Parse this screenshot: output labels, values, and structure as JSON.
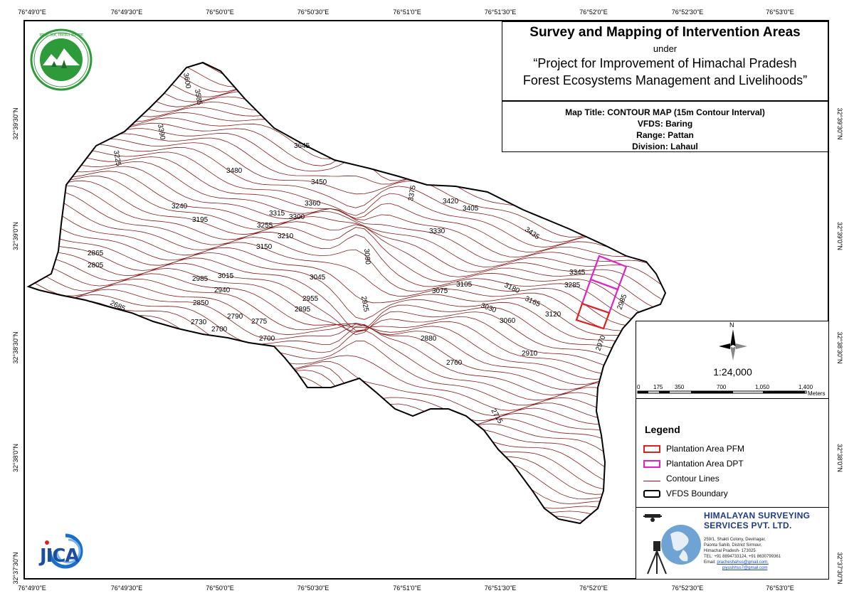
{
  "title": {
    "main": "Survey and Mapping of Intervention Areas",
    "under": "under",
    "project_line1": "“Project for Improvement of Himachal Pradesh",
    "project_line2": "Forest Ecosystems Management and Livelihoods”"
  },
  "info": {
    "map_title": "Map Title: CONTOUR MAP (15m Contour Interval)",
    "vfds": "VFDS: Baring",
    "range": "Range: Pattan",
    "division": "Division: Lahaul"
  },
  "coords": {
    "top": [
      "76°49'0\"E",
      "76°49'30\"E",
      "76°50'0\"E",
      "76°50'30\"E",
      "76°51'0\"E",
      "76°51'30\"E",
      "76°52'0\"E",
      "76°52'30\"E",
      "76°53'0\"E"
    ],
    "bottom": [
      "76°49'0\"E",
      "76°49'30\"E",
      "76°50'0\"E",
      "76°50'30\"E",
      "76°51'0\"E",
      "76°51'30\"E",
      "76°52'0\"E",
      "76°52'30\"E",
      "76°53'0\"E"
    ],
    "left": [
      "32°39'30\"N",
      "32°39'0\"N",
      "32°38'30\"N",
      "32°38'0\"N",
      "32°37'30\"N"
    ],
    "right": [
      "32°39'30\"N",
      "32°39'0\"N",
      "32°38'30\"N",
      "32°38'0\"N",
      "32°37'30\"N"
    ]
  },
  "north_label": "N",
  "scale": {
    "ratio": "1:24,000",
    "ticks": [
      "0",
      "175",
      "350",
      "700",
      "1,050",
      "1,400"
    ],
    "unit": "Meters"
  },
  "legend": {
    "title": "Legend",
    "items": [
      {
        "label": "Plantation Area PFM",
        "color": "#e0201c",
        "kind": "box"
      },
      {
        "label": "Plantation Area DPT",
        "color": "#e020c8",
        "kind": "box"
      },
      {
        "label": "Contour Lines",
        "color": "#8b1a1a",
        "kind": "line"
      },
      {
        "label": "VFDS Boundary",
        "color": "#000000",
        "kind": "box"
      }
    ]
  },
  "company": {
    "name_line1": "HIMALAYAN SURVEYING",
    "name_line2": "SERVICES PVT. LTD.",
    "address": [
      "259/1, Shakti Colony, Devinagar,",
      "Paonta Sahib, District Sirmour,",
      "Himachal Pradesh- 173025",
      "TEL: +91 8894733124, +91 8630799361"
    ],
    "email_label": "Email:",
    "email1": "pracheshahss@gmail.com,",
    "email2": "piyushhss7@gmail.com"
  },
  "logos": {
    "forest_dept_text": "वन ही जल, विरासत कल्याण",
    "jica": "JICA"
  },
  "contour_labels": [
    {
      "t": "3600",
      "r": 80
    },
    {
      "t": "3585",
      "r": 80
    },
    {
      "t": "3390",
      "r": 80
    },
    {
      "t": "3225",
      "r": 80
    },
    {
      "t": "3645",
      "r": 0
    },
    {
      "t": "3480",
      "r": 0
    },
    {
      "t": "3450",
      "r": 0
    },
    {
      "t": "3360",
      "r": 0
    },
    {
      "t": "3315",
      "r": 0
    },
    {
      "t": "3300",
      "r": 0
    },
    {
      "t": "3255",
      "r": 0
    },
    {
      "t": "3210",
      "r": 0
    },
    {
      "t": "3240",
      "r": 0
    },
    {
      "t": "3195",
      "r": 0
    },
    {
      "t": "3150",
      "r": 0
    },
    {
      "t": "3375",
      "r": -80
    },
    {
      "t": "3420",
      "r": 0
    },
    {
      "t": "3405",
      "r": 0
    },
    {
      "t": "3330",
      "r": 0
    },
    {
      "t": "3435",
      "r": 35
    },
    {
      "t": "2865",
      "r": 0
    },
    {
      "t": "2805",
      "r": 0
    },
    {
      "t": "2985",
      "r": 0
    },
    {
      "t": "3015",
      "r": 0
    },
    {
      "t": "2940",
      "r": 0
    },
    {
      "t": "3045",
      "r": 0
    },
    {
      "t": "3090",
      "r": 85
    },
    {
      "t": "2925",
      "r": 80
    },
    {
      "t": "2955",
      "r": 0
    },
    {
      "t": "2895",
      "r": 0
    },
    {
      "t": "2850",
      "r": 0
    },
    {
      "t": "2790",
      "r": 0
    },
    {
      "t": "2775",
      "r": 0
    },
    {
      "t": "2730",
      "r": 0
    },
    {
      "t": "2700",
      "r": 0
    },
    {
      "t": "2700",
      "r": 0
    },
    {
      "t": "2685",
      "r": 25
    },
    {
      "t": "3075",
      "r": 0
    },
    {
      "t": "3105",
      "r": 0
    },
    {
      "t": "3030",
      "r": 20
    },
    {
      "t": "3060",
      "r": 0
    },
    {
      "t": "3180",
      "r": 25
    },
    {
      "t": "3165",
      "r": 25
    },
    {
      "t": "3120",
      "r": 0
    },
    {
      "t": "3345",
      "r": 0
    },
    {
      "t": "3285",
      "r": 0
    },
    {
      "t": "2985",
      "r": -70
    },
    {
      "t": "2970",
      "r": -70
    },
    {
      "t": "2880",
      "r": 0
    },
    {
      "t": "2910",
      "r": 0
    },
    {
      "t": "2760",
      "r": 0
    },
    {
      "t": "2715",
      "r": 60
    }
  ]
}
